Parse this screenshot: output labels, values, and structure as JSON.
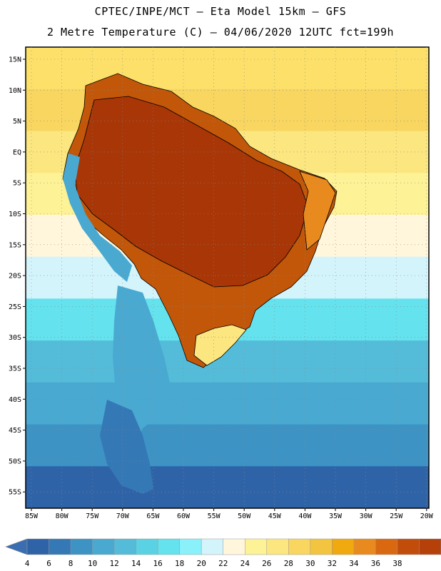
{
  "header": {
    "title_line1": "CPTEC/INPE/MCT –  Eta Model 15km – GFS",
    "title_line2": "2 Metre Temperature (C) – 04/06/2020 12UTC fct=199h"
  },
  "axes": {
    "lat_labels": [
      "15N",
      "10N",
      "5N",
      "EQ",
      "5S",
      "10S",
      "15S",
      "20S",
      "25S",
      "30S",
      "35S",
      "40S",
      "45S",
      "50S",
      "55S"
    ],
    "lon_labels": [
      "85W",
      "80W",
      "75W",
      "70W",
      "65W",
      "60W",
      "55W",
      "50W",
      "45W",
      "40W",
      "35W",
      "30W",
      "25W",
      "20W"
    ]
  },
  "colorbar": {
    "labels": [
      "4",
      "6",
      "8",
      "10",
      "12",
      "14",
      "16",
      "18",
      "20",
      "22",
      "24",
      "26",
      "28",
      "30",
      "32",
      "34",
      "36",
      "38"
    ],
    "low_color": "#3a6eb0",
    "high_color": "#b5400a",
    "colors": [
      "#2f63a8",
      "#3478b6",
      "#3d93c4",
      "#4aa9d0",
      "#54bcd9",
      "#5ad2e4",
      "#64e2ee",
      "#8af0fa",
      "#d4f4fb",
      "#fff6dc",
      "#fdf296",
      "#fce680",
      "#f8d660",
      "#f2c440",
      "#f1a910",
      "#e98a1e",
      "#d96810",
      "#c24c0a",
      "#b5400a"
    ]
  },
  "map": {
    "ocean_bands": [
      "#fce06a",
      "#f8d660",
      "#fce680",
      "#fdf296",
      "#fff6dc",
      "#d4f4fb",
      "#64e2ee",
      "#54bcd9",
      "#4aa9d0",
      "#3d93c4",
      "#2f63a8"
    ],
    "land_hot_color": "#a83606",
    "land_warm_color": "#c2570a",
    "land_edge_color": "#e98a1e",
    "land_mild_color": "#fce680",
    "land_cool_color": "#4aa9d0",
    "land_cold_color": "#3478b6"
  }
}
